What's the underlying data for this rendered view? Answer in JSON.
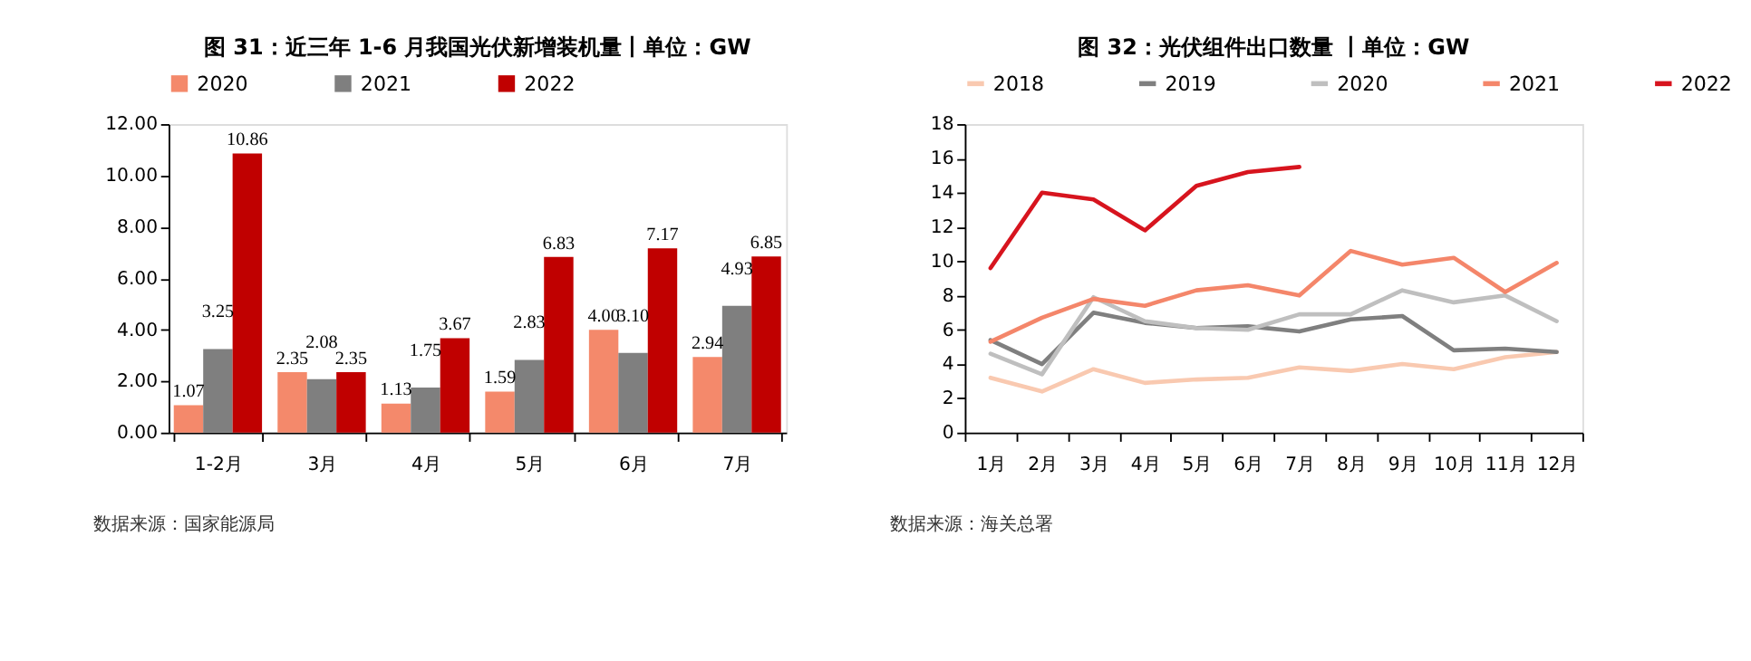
{
  "chart_data": [
    {
      "type": "bar",
      "title": "图 31：近三年 1-6 月我国光伏新增装机量丨单位：GW",
      "categories": [
        "1-2月",
        "3月",
        "4月",
        "5月",
        "6月",
        "7月"
      ],
      "series": [
        {
          "name": "2020",
          "color": "#f4896b",
          "values": [
            1.07,
            2.35,
            1.13,
            1.59,
            4.0,
            2.94
          ],
          "value_labels": [
            "1.07",
            "2.35",
            "1.13",
            "1.59",
            "4.00",
            "2.94"
          ]
        },
        {
          "name": "2021",
          "color": "#7f7f7f",
          "values": [
            3.25,
            2.08,
            1.75,
            2.83,
            3.1,
            4.93
          ],
          "value_labels": [
            "3.25",
            "2.08",
            "1.75",
            "2.83",
            "3.10",
            "4.93"
          ]
        },
        {
          "name": "2022",
          "color": "#c00000",
          "values": [
            10.86,
            2.35,
            3.67,
            6.83,
            7.17,
            6.85
          ],
          "value_labels": [
            "10.86",
            "2.35",
            "3.67",
            "6.83",
            "7.17",
            "6.85"
          ]
        }
      ],
      "ylim": [
        0,
        12
      ],
      "yticks": [
        {
          "value": 0,
          "label": "0.00"
        },
        {
          "value": 2,
          "label": "2.00"
        },
        {
          "value": 4,
          "label": "4.00"
        },
        {
          "value": 6,
          "label": "6.00"
        },
        {
          "value": 8,
          "label": "8.00"
        },
        {
          "value": 10,
          "label": "10.00"
        },
        {
          "value": 12,
          "label": "12.00"
        }
      ],
      "grid": false,
      "legend": "top",
      "annotations": [
        "数据来源：国家能源局"
      ]
    },
    {
      "type": "line",
      "title": "图 32：光伏组件出口数量 丨单位：GW",
      "categories": [
        "1月",
        "2月",
        "3月",
        "4月",
        "5月",
        "6月",
        "7月",
        "8月",
        "9月",
        "10月",
        "11月",
        "12月"
      ],
      "series": [
        {
          "name": "2018",
          "color": "#f9c9b0",
          "values": [
            3.2,
            2.4,
            3.7,
            2.9,
            3.1,
            3.2,
            3.8,
            3.6,
            4.0,
            3.7,
            4.4,
            4.7
          ]
        },
        {
          "name": "2019",
          "color": "#7f7f7f",
          "values": [
            5.4,
            4.0,
            7.0,
            6.4,
            6.1,
            6.2,
            5.9,
            6.6,
            6.8,
            4.8,
            4.9,
            4.7
          ]
        },
        {
          "name": "2020",
          "color": "#bfbfbf",
          "values": [
            4.6,
            3.4,
            7.9,
            6.5,
            6.1,
            6.0,
            6.9,
            6.9,
            8.3,
            7.6,
            8.0,
            6.5
          ]
        },
        {
          "name": "2021",
          "color": "#f4866a",
          "values": [
            5.3,
            6.7,
            7.8,
            7.4,
            8.3,
            8.6,
            8.0,
            10.6,
            9.8,
            10.2,
            8.2,
            9.9
          ]
        },
        {
          "name": "2022",
          "color": "#d7141e",
          "values": [
            9.6,
            14.0,
            13.6,
            11.8,
            14.4,
            15.2,
            15.5,
            null,
            null,
            null,
            null,
            null
          ]
        }
      ],
      "ylim": [
        0,
        18
      ],
      "yticks": [
        0,
        2,
        4,
        6,
        8,
        10,
        12,
        14,
        16,
        18
      ],
      "grid": false,
      "legend": "top",
      "line_style": "solid",
      "annotations": [
        "数据来源：海关总署"
      ]
    }
  ]
}
